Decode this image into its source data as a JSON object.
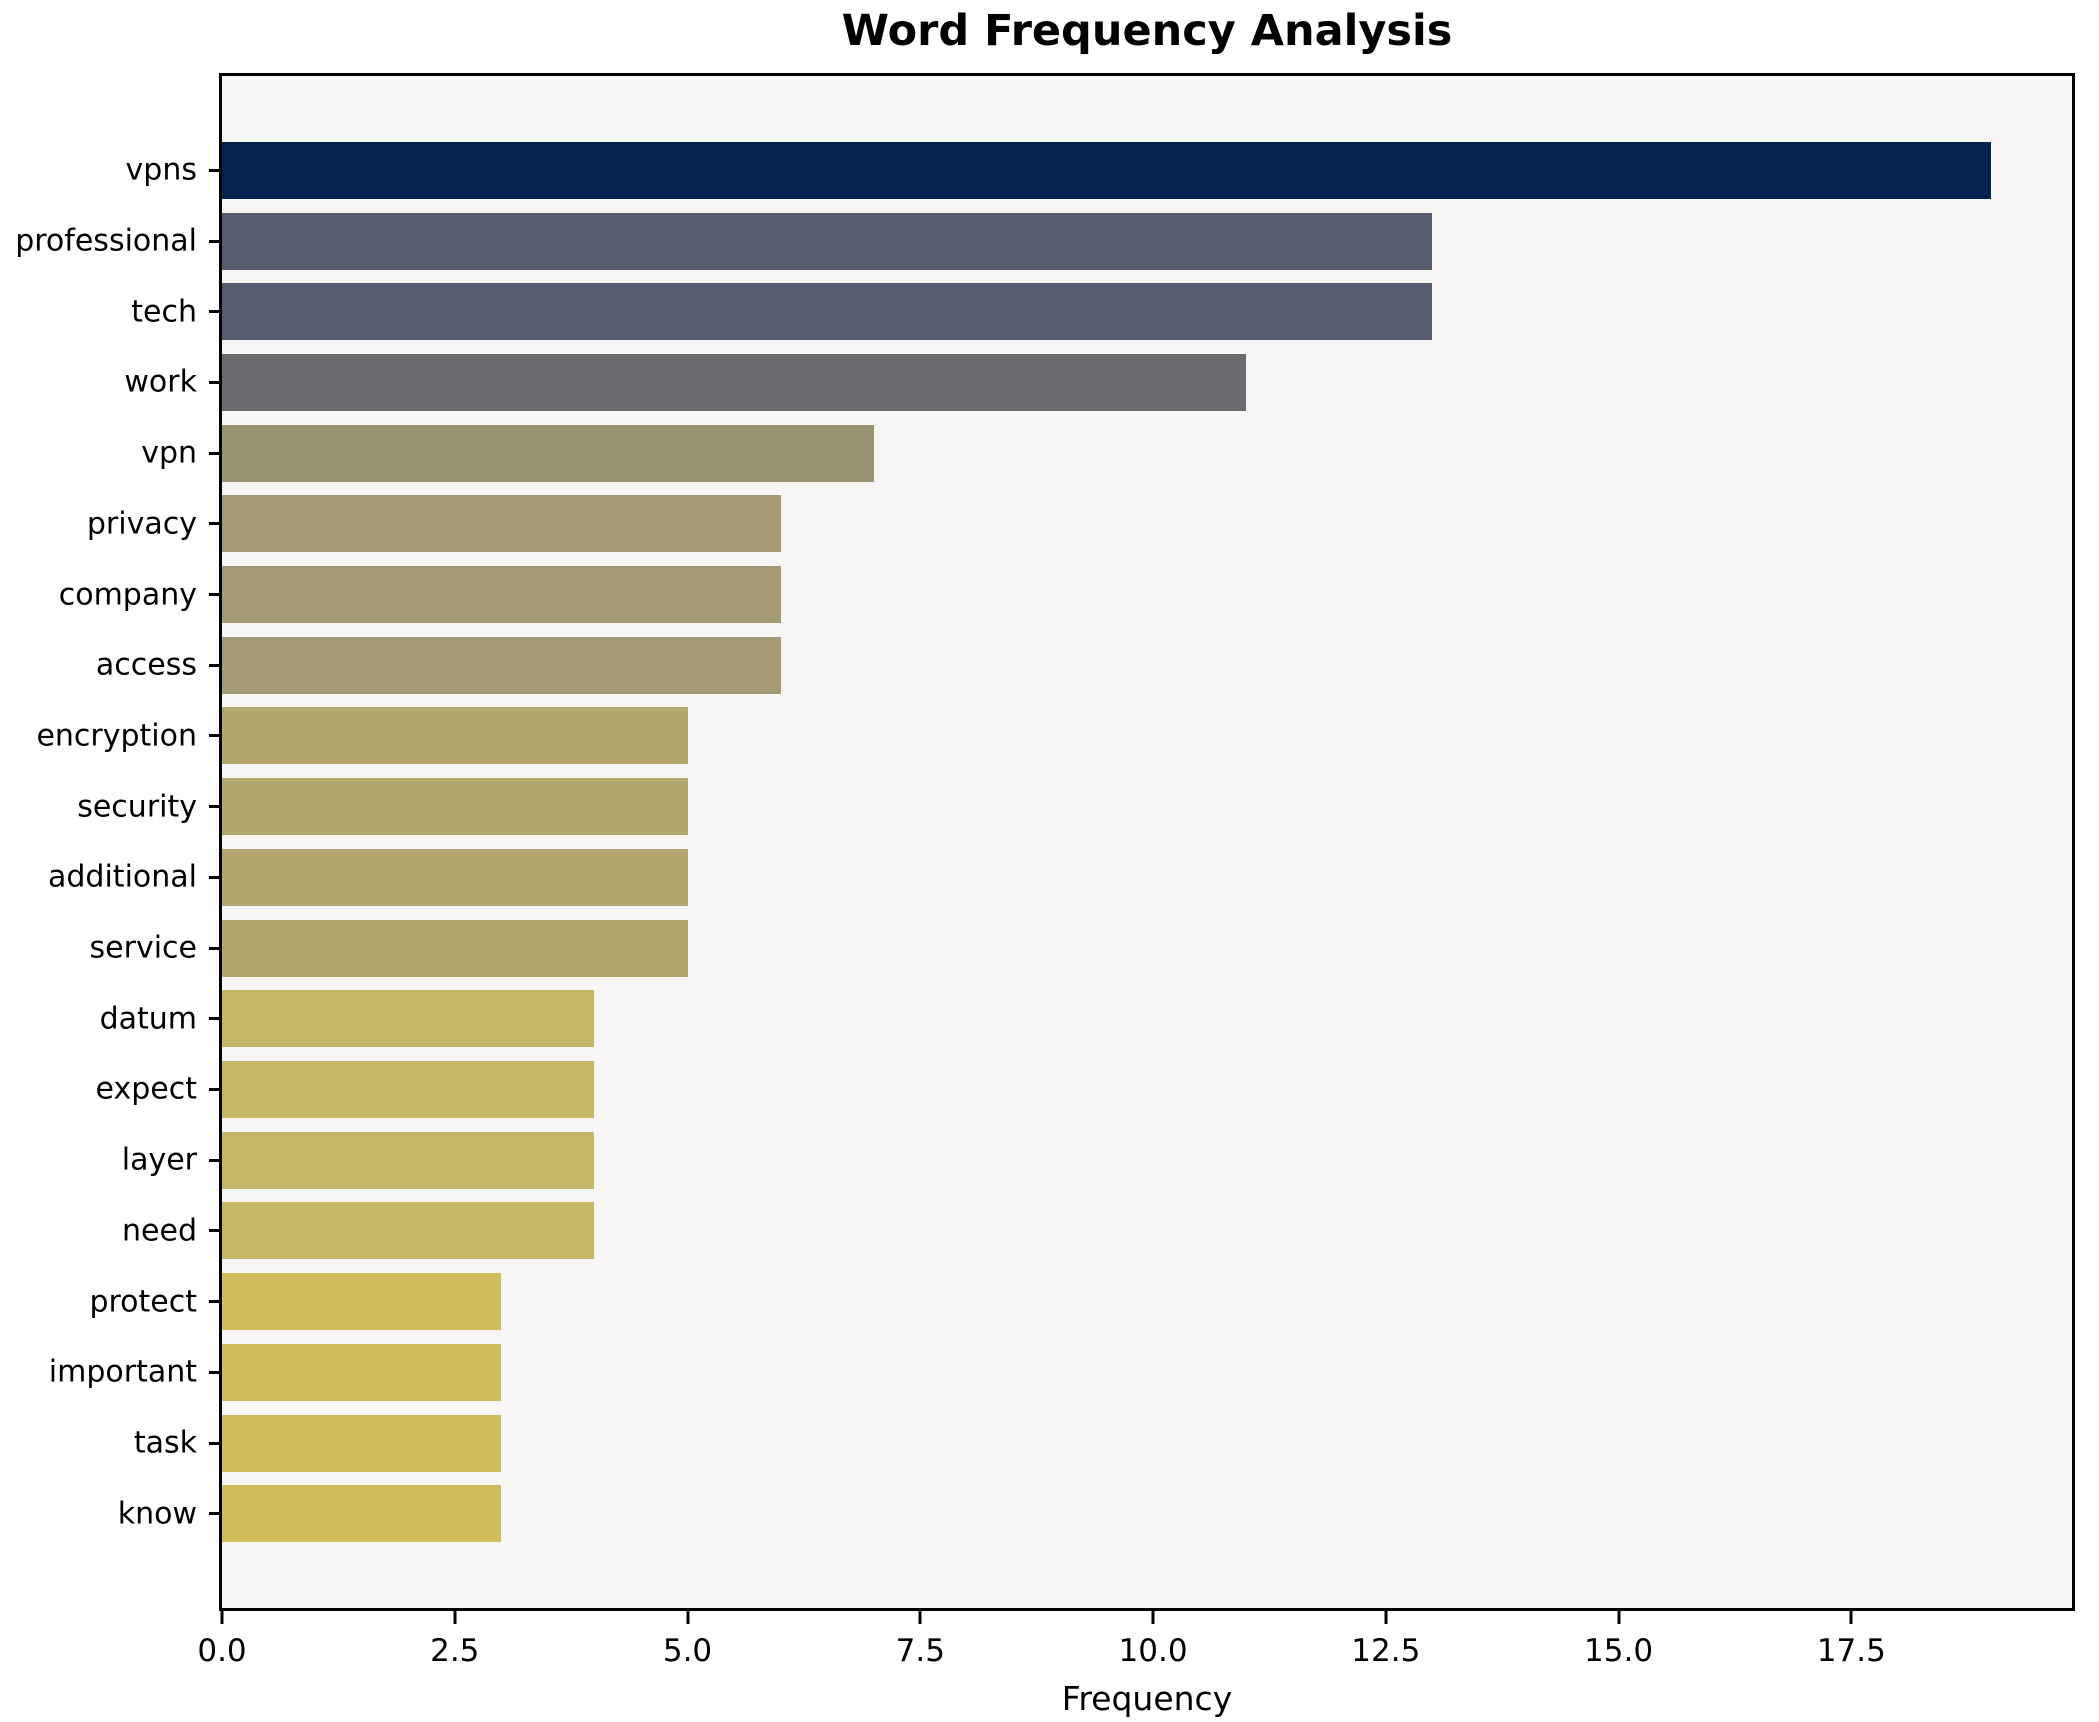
{
  "figure": {
    "title": "Word Frequency Analysis",
    "background": "#ffffff",
    "plot_background": "#f7f6f4",
    "spine_color": "#000000"
  },
  "chart_data": {
    "type": "bar",
    "orientation": "horizontal",
    "title": "Word Frequency Analysis",
    "xlabel": "Frequency",
    "ylabel": "",
    "categories": [
      "vpns",
      "professional",
      "tech",
      "work",
      "vpn",
      "privacy",
      "company",
      "access",
      "encryption",
      "security",
      "additional",
      "service",
      "datum",
      "expect",
      "layer",
      "need",
      "protect",
      "important",
      "task",
      "know"
    ],
    "values": [
      19,
      13,
      13,
      11,
      7,
      6,
      6,
      6,
      5,
      5,
      5,
      5,
      4,
      4,
      4,
      4,
      3,
      3,
      3,
      3
    ],
    "bar_colors": [
      "#03234e",
      "#565c70",
      "#565c70",
      "#6b6b70",
      "#9a9473",
      "#a49b72",
      "#a49b72",
      "#a49b72",
      "#b3a76d",
      "#b3a76d",
      "#b3a76d",
      "#b3a76d",
      "#c3b664",
      "#c3b664",
      "#c3b664",
      "#c3b664",
      "#d0be5d",
      "#d0be5d",
      "#d0be5d",
      "#d0be5d"
    ],
    "xticks": [
      0.0,
      2.5,
      5.0,
      7.5,
      10.0,
      12.5,
      15.0,
      17.5
    ],
    "xtick_labels": [
      "0.0",
      "2.5",
      "5.0",
      "7.5",
      "10.0",
      "12.5",
      "15.0",
      "17.5"
    ],
    "xlim": [
      0,
      19.87
    ],
    "grid": false,
    "legend": null
  }
}
